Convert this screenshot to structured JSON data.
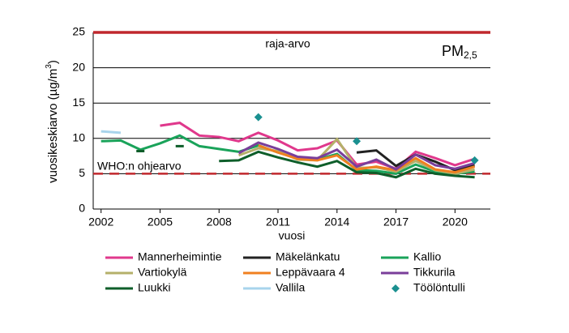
{
  "chart_data": {
    "type": "line",
    "panel_label": "PM",
    "panel_label_sub": "2,5",
    "y_label": "vuosikeskiarvo (µg/m",
    "y_label_sup": "3",
    "y_label_end": ")",
    "x_label": "vuosi",
    "x": [
      2002,
      2003,
      2004,
      2005,
      2006,
      2007,
      2008,
      2009,
      2010,
      2011,
      2012,
      2013,
      2014,
      2015,
      2016,
      2017,
      2018,
      2019,
      2020,
      2021
    ],
    "xlim": [
      2001.6,
      2021.8
    ],
    "xticks": [
      2002,
      2005,
      2008,
      2011,
      2014,
      2017,
      2020
    ],
    "ylim": [
      0,
      25
    ],
    "yticks": [
      0,
      5,
      10,
      15,
      20,
      25
    ],
    "grid": true,
    "reference_lines": [
      {
        "value": 25,
        "label": "raja-arvo",
        "color": "#c0282d",
        "dashed": false
      },
      {
        "value": 5,
        "label": "WHO:n ohjearvo",
        "color": "#c0282d",
        "dashed": true
      }
    ],
    "series": [
      {
        "name": "Mannerheimintie",
        "color": "#e0388c",
        "values": [
          null,
          null,
          null,
          11.8,
          12.2,
          10.4,
          10.2,
          9.6,
          10.8,
          9.7,
          8.3,
          8.6,
          9.7,
          6.3,
          6.7,
          5.7,
          8.1,
          7.2,
          6.2,
          7.1
        ]
      },
      {
        "name": "Mäkelänkatu",
        "color": "#222222",
        "values": [
          null,
          null,
          null,
          null,
          null,
          null,
          null,
          null,
          null,
          null,
          null,
          null,
          null,
          8.0,
          8.3,
          6.1,
          7.7,
          6.7,
          5.5,
          6.2
        ]
      },
      {
        "name": "Kallio",
        "color": "#1aa35a",
        "values": [
          9.6,
          9.7,
          8.4,
          9.3,
          10.4,
          8.9,
          8.5,
          8.1,
          9.0,
          8.0,
          7.2,
          7.0,
          7.8,
          5.5,
          5.4,
          5.0,
          6.3,
          5.3,
          5.0,
          5.3
        ]
      },
      {
        "name": "Vartiokylä",
        "color": "#b5b06a",
        "values": [
          null,
          null,
          null,
          null,
          null,
          null,
          null,
          7.6,
          8.6,
          8.2,
          7.0,
          6.9,
          9.9,
          5.8,
          5.9,
          5.3,
          6.8,
          5.5,
          5.0,
          5.6
        ]
      },
      {
        "name": "Leppävaara 4",
        "color": "#f08020",
        "values": [
          null,
          null,
          null,
          null,
          null,
          null,
          null,
          null,
          9.0,
          8.0,
          7.1,
          6.9,
          7.6,
          5.6,
          6.0,
          5.5,
          7.2,
          5.6,
          5.2,
          6.0
        ]
      },
      {
        "name": "Tikkurila",
        "color": "#7a3e9a",
        "values": [
          null,
          null,
          null,
          null,
          null,
          null,
          null,
          7.9,
          9.4,
          8.5,
          7.4,
          7.2,
          8.4,
          6.0,
          7.0,
          5.6,
          7.7,
          6.2,
          5.7,
          6.5
        ]
      },
      {
        "name": "Luukki",
        "color": "#0e5e2a",
        "values": [
          null,
          null,
          8.2,
          null,
          8.9,
          null,
          6.8,
          6.9,
          8.1,
          7.3,
          6.6,
          6.0,
          6.8,
          5.2,
          5.1,
          4.5,
          5.7,
          5.0,
          4.7,
          4.5
        ]
      },
      {
        "name": "Vallila",
        "color": "#a8d4ec",
        "values": [
          11.0,
          10.8,
          null,
          null,
          null,
          null,
          null,
          null,
          null,
          null,
          null,
          null,
          null,
          null,
          null,
          null,
          null,
          null,
          null,
          null
        ]
      },
      {
        "name": "Töölöntulli",
        "color": "#1a9090",
        "type": "scatter",
        "values": [
          null,
          null,
          null,
          null,
          null,
          null,
          null,
          null,
          13.0,
          null,
          null,
          null,
          null,
          9.6,
          null,
          null,
          null,
          null,
          null,
          6.9
        ]
      }
    ]
  }
}
